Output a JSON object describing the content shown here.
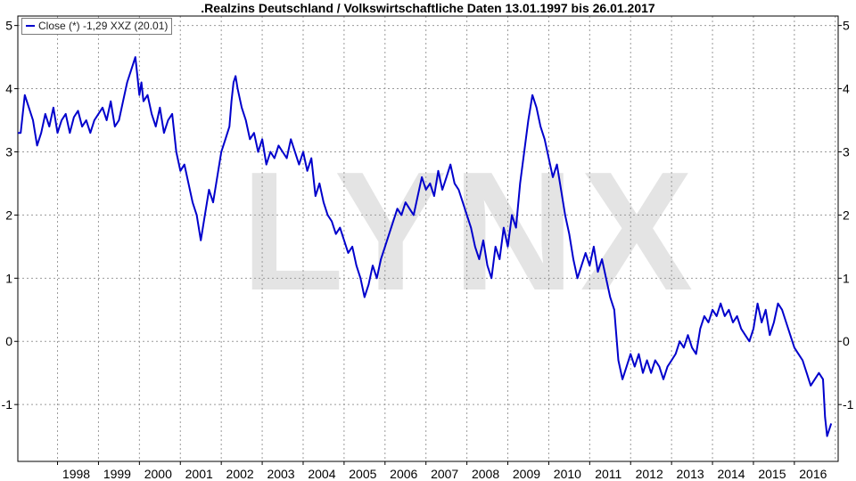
{
  "chart_data": {
    "type": "line",
    "title": ".Realzins Deutschland / Volkswirtschaftliche Daten 13.01.1997 bis 26.01.2017",
    "xlabel": "",
    "ylabel": "",
    "xlim": [
      1997.03,
      2017.07
    ],
    "ylim": [
      -1.9,
      5.15
    ],
    "x_ticks": [
      "1998",
      "1999",
      "2000",
      "2001",
      "2002",
      "2003",
      "2004",
      "2005",
      "2006",
      "2007",
      "2008",
      "2009",
      "2010",
      "2011",
      "2012",
      "2013",
      "2014",
      "2015",
      "2016"
    ],
    "y_ticks_left": [
      "5",
      "4",
      "3",
      "2",
      "1",
      "0",
      "-1"
    ],
    "y_ticks_right": [
      "5",
      "4",
      "3",
      "2",
      "1",
      "0",
      "-1"
    ],
    "grid": true,
    "legend_position": "top-left",
    "series": [
      {
        "name": "Close (*) -1,29 XXZ (20.01)",
        "color": "#0000cc",
        "points": [
          [
            1997.03,
            3.3
          ],
          [
            1997.1,
            3.3
          ],
          [
            1997.2,
            3.9
          ],
          [
            1997.3,
            3.7
          ],
          [
            1997.4,
            3.5
          ],
          [
            1997.5,
            3.1
          ],
          [
            1997.6,
            3.3
          ],
          [
            1997.7,
            3.6
          ],
          [
            1997.8,
            3.4
          ],
          [
            1997.9,
            3.7
          ],
          [
            1998.0,
            3.3
          ],
          [
            1998.1,
            3.5
          ],
          [
            1998.2,
            3.6
          ],
          [
            1998.3,
            3.3
          ],
          [
            1998.4,
            3.55
          ],
          [
            1998.5,
            3.65
          ],
          [
            1998.6,
            3.4
          ],
          [
            1998.7,
            3.5
          ],
          [
            1998.8,
            3.3
          ],
          [
            1998.9,
            3.5
          ],
          [
            1999.0,
            3.6
          ],
          [
            1999.1,
            3.7
          ],
          [
            1999.2,
            3.5
          ],
          [
            1999.3,
            3.8
          ],
          [
            1999.4,
            3.4
          ],
          [
            1999.5,
            3.5
          ],
          [
            1999.6,
            3.8
          ],
          [
            1999.7,
            4.1
          ],
          [
            1999.8,
            4.3
          ],
          [
            1999.85,
            4.4
          ],
          [
            1999.9,
            4.5
          ],
          [
            1999.95,
            4.2
          ],
          [
            2000.0,
            3.9
          ],
          [
            2000.05,
            4.1
          ],
          [
            2000.1,
            3.8
          ],
          [
            2000.2,
            3.9
          ],
          [
            2000.3,
            3.6
          ],
          [
            2000.4,
            3.4
          ],
          [
            2000.5,
            3.7
          ],
          [
            2000.6,
            3.3
          ],
          [
            2000.7,
            3.5
          ],
          [
            2000.8,
            3.6
          ],
          [
            2000.9,
            3.0
          ],
          [
            2001.0,
            2.7
          ],
          [
            2001.1,
            2.8
          ],
          [
            2001.2,
            2.5
          ],
          [
            2001.3,
            2.2
          ],
          [
            2001.4,
            2.0
          ],
          [
            2001.5,
            1.6
          ],
          [
            2001.6,
            2.0
          ],
          [
            2001.7,
            2.4
          ],
          [
            2001.8,
            2.2
          ],
          [
            2001.9,
            2.6
          ],
          [
            2002.0,
            3.0
          ],
          [
            2002.1,
            3.2
          ],
          [
            2002.2,
            3.4
          ],
          [
            2002.25,
            3.8
          ],
          [
            2002.3,
            4.1
          ],
          [
            2002.35,
            4.2
          ],
          [
            2002.4,
            4.0
          ],
          [
            2002.5,
            3.7
          ],
          [
            2002.6,
            3.5
          ],
          [
            2002.7,
            3.2
          ],
          [
            2002.8,
            3.3
          ],
          [
            2002.9,
            3.0
          ],
          [
            2003.0,
            3.2
          ],
          [
            2003.1,
            2.8
          ],
          [
            2003.2,
            3.0
          ],
          [
            2003.3,
            2.9
          ],
          [
            2003.4,
            3.1
          ],
          [
            2003.5,
            3.0
          ],
          [
            2003.6,
            2.9
          ],
          [
            2003.7,
            3.2
          ],
          [
            2003.8,
            3.0
          ],
          [
            2003.9,
            2.8
          ],
          [
            2004.0,
            3.0
          ],
          [
            2004.1,
            2.7
          ],
          [
            2004.2,
            2.9
          ],
          [
            2004.3,
            2.3
          ],
          [
            2004.4,
            2.5
          ],
          [
            2004.5,
            2.2
          ],
          [
            2004.6,
            2.0
          ],
          [
            2004.7,
            1.9
          ],
          [
            2004.8,
            1.7
          ],
          [
            2004.9,
            1.8
          ],
          [
            2005.0,
            1.6
          ],
          [
            2005.1,
            1.4
          ],
          [
            2005.2,
            1.5
          ],
          [
            2005.3,
            1.2
          ],
          [
            2005.4,
            1.0
          ],
          [
            2005.5,
            0.7
          ],
          [
            2005.6,
            0.9
          ],
          [
            2005.7,
            1.2
          ],
          [
            2005.8,
            1.0
          ],
          [
            2005.9,
            1.3
          ],
          [
            2006.0,
            1.5
          ],
          [
            2006.1,
            1.7
          ],
          [
            2006.2,
            1.9
          ],
          [
            2006.3,
            2.1
          ],
          [
            2006.4,
            2.0
          ],
          [
            2006.5,
            2.2
          ],
          [
            2006.6,
            2.1
          ],
          [
            2006.7,
            2.0
          ],
          [
            2006.8,
            2.3
          ],
          [
            2006.9,
            2.6
          ],
          [
            2007.0,
            2.4
          ],
          [
            2007.1,
            2.5
          ],
          [
            2007.2,
            2.3
          ],
          [
            2007.3,
            2.7
          ],
          [
            2007.4,
            2.4
          ],
          [
            2007.5,
            2.6
          ],
          [
            2007.6,
            2.8
          ],
          [
            2007.7,
            2.5
          ],
          [
            2007.8,
            2.4
          ],
          [
            2007.9,
            2.2
          ],
          [
            2008.0,
            2.0
          ],
          [
            2008.1,
            1.8
          ],
          [
            2008.2,
            1.5
          ],
          [
            2008.3,
            1.3
          ],
          [
            2008.4,
            1.6
          ],
          [
            2008.5,
            1.2
          ],
          [
            2008.6,
            1.0
          ],
          [
            2008.7,
            1.5
          ],
          [
            2008.8,
            1.3
          ],
          [
            2008.9,
            1.8
          ],
          [
            2009.0,
            1.5
          ],
          [
            2009.1,
            2.0
          ],
          [
            2009.2,
            1.8
          ],
          [
            2009.3,
            2.5
          ],
          [
            2009.4,
            3.0
          ],
          [
            2009.5,
            3.5
          ],
          [
            2009.6,
            3.9
          ],
          [
            2009.7,
            3.7
          ],
          [
            2009.8,
            3.4
          ],
          [
            2009.9,
            3.2
          ],
          [
            2010.0,
            2.9
          ],
          [
            2010.1,
            2.6
          ],
          [
            2010.2,
            2.8
          ],
          [
            2010.3,
            2.4
          ],
          [
            2010.4,
            2.0
          ],
          [
            2010.5,
            1.7
          ],
          [
            2010.6,
            1.3
          ],
          [
            2010.7,
            1.0
          ],
          [
            2010.8,
            1.2
          ],
          [
            2010.9,
            1.4
          ],
          [
            2011.0,
            1.2
          ],
          [
            2011.1,
            1.5
          ],
          [
            2011.2,
            1.1
          ],
          [
            2011.3,
            1.3
          ],
          [
            2011.4,
            1.0
          ],
          [
            2011.5,
            0.7
          ],
          [
            2011.6,
            0.5
          ],
          [
            2011.65,
            0.1
          ],
          [
            2011.7,
            -0.3
          ],
          [
            2011.8,
            -0.6
          ],
          [
            2011.9,
            -0.4
          ],
          [
            2012.0,
            -0.2
          ],
          [
            2012.1,
            -0.4
          ],
          [
            2012.2,
            -0.2
          ],
          [
            2012.3,
            -0.5
          ],
          [
            2012.4,
            -0.3
          ],
          [
            2012.5,
            -0.5
          ],
          [
            2012.6,
            -0.3
          ],
          [
            2012.7,
            -0.4
          ],
          [
            2012.8,
            -0.6
          ],
          [
            2012.9,
            -0.4
          ],
          [
            2013.0,
            -0.3
          ],
          [
            2013.1,
            -0.2
          ],
          [
            2013.2,
            0.0
          ],
          [
            2013.3,
            -0.1
          ],
          [
            2013.4,
            0.1
          ],
          [
            2013.5,
            -0.1
          ],
          [
            2013.6,
            -0.2
          ],
          [
            2013.7,
            0.2
          ],
          [
            2013.8,
            0.4
          ],
          [
            2013.9,
            0.3
          ],
          [
            2014.0,
            0.5
          ],
          [
            2014.1,
            0.4
          ],
          [
            2014.2,
            0.6
          ],
          [
            2014.3,
            0.4
          ],
          [
            2014.4,
            0.5
          ],
          [
            2014.5,
            0.3
          ],
          [
            2014.6,
            0.4
          ],
          [
            2014.7,
            0.2
          ],
          [
            2014.8,
            0.1
          ],
          [
            2014.9,
            0.0
          ],
          [
            2015.0,
            0.2
          ],
          [
            2015.1,
            0.6
          ],
          [
            2015.2,
            0.3
          ],
          [
            2015.3,
            0.5
          ],
          [
            2015.4,
            0.1
          ],
          [
            2015.5,
            0.3
          ],
          [
            2015.6,
            0.6
          ],
          [
            2015.7,
            0.5
          ],
          [
            2015.8,
            0.3
          ],
          [
            2015.9,
            0.1
          ],
          [
            2016.0,
            -0.1
          ],
          [
            2016.1,
            -0.2
          ],
          [
            2016.2,
            -0.3
          ],
          [
            2016.3,
            -0.5
          ],
          [
            2016.4,
            -0.7
          ],
          [
            2016.5,
            -0.6
          ],
          [
            2016.6,
            -0.5
          ],
          [
            2016.7,
            -0.6
          ],
          [
            2016.75,
            -1.2
          ],
          [
            2016.8,
            -1.5
          ],
          [
            2016.85,
            -1.4
          ],
          [
            2016.9,
            -1.3
          ]
        ]
      }
    ],
    "watermark": "LYNX"
  }
}
